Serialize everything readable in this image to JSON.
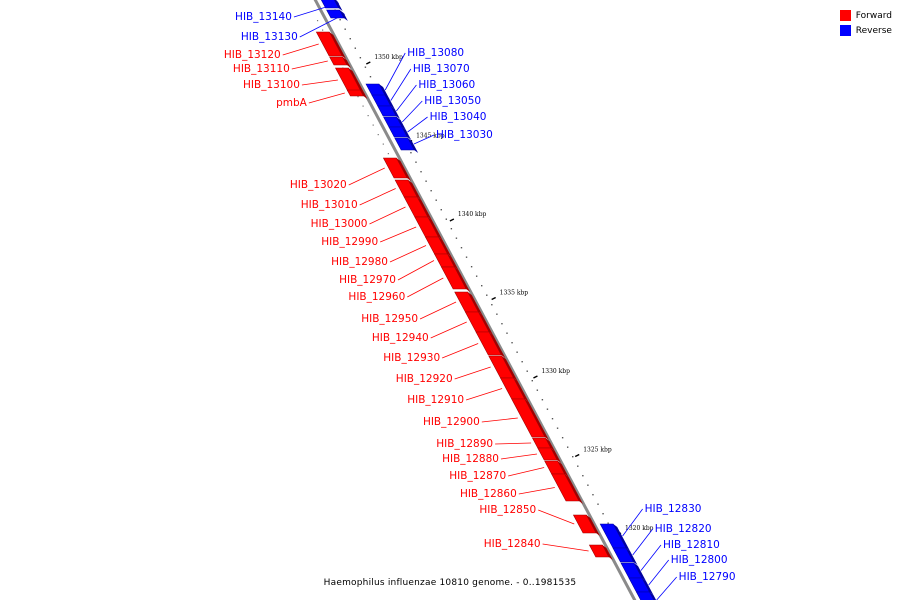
{
  "caption": "Haemophilus influenzae 10810 genome. - 0..1981535",
  "legend": [
    {
      "label": "Forward",
      "color": "#ff0000"
    },
    {
      "label": "Reverse",
      "color": "#0000ff"
    }
  ],
  "colors": {
    "forward": "#ff0000",
    "reverse": "#0000ff",
    "axis": "#888888"
  },
  "ticks": [
    {
      "label": "1350 kbp",
      "kbp": 1350
    },
    {
      "label": "1345 kbp",
      "kbp": 1345
    },
    {
      "label": "1340 kbp",
      "kbp": 1340
    },
    {
      "label": "1335 kbp",
      "kbp": 1335
    },
    {
      "label": "1330 kbp",
      "kbp": 1330
    },
    {
      "label": "1325 kbp",
      "kbp": 1325
    },
    {
      "label": "1320 kbp",
      "kbp": 1320
    }
  ],
  "genes": [
    {
      "name": "HIB_13140",
      "strand": "reverse"
    },
    {
      "name": "HIB_13130",
      "strand": "reverse"
    },
    {
      "name": "HIB_13120",
      "strand": "forward"
    },
    {
      "name": "HIB_13110",
      "strand": "forward"
    },
    {
      "name": "HIB_13100",
      "strand": "forward"
    },
    {
      "name": "pmbA",
      "strand": "forward"
    },
    {
      "name": "HIB_13080",
      "strand": "reverse"
    },
    {
      "name": "HIB_13070",
      "strand": "reverse"
    },
    {
      "name": "HIB_13060",
      "strand": "reverse"
    },
    {
      "name": "HIB_13050",
      "strand": "reverse"
    },
    {
      "name": "HIB_13040",
      "strand": "reverse"
    },
    {
      "name": "HIB_13030",
      "strand": "reverse"
    },
    {
      "name": "HIB_13020",
      "strand": "forward"
    },
    {
      "name": "HIB_13010",
      "strand": "forward"
    },
    {
      "name": "HIB_13000",
      "strand": "forward"
    },
    {
      "name": "HIB_12990",
      "strand": "forward"
    },
    {
      "name": "HIB_12980",
      "strand": "forward"
    },
    {
      "name": "HIB_12970",
      "strand": "forward"
    },
    {
      "name": "HIB_12960",
      "strand": "forward"
    },
    {
      "name": "HIB_12950",
      "strand": "forward"
    },
    {
      "name": "HIB_12940",
      "strand": "forward"
    },
    {
      "name": "HIB_12930",
      "strand": "forward"
    },
    {
      "name": "HIB_12920",
      "strand": "forward"
    },
    {
      "name": "HIB_12910",
      "strand": "forward"
    },
    {
      "name": "HIB_12900",
      "strand": "forward"
    },
    {
      "name": "HIB_12890",
      "strand": "forward"
    },
    {
      "name": "HIB_12880",
      "strand": "forward"
    },
    {
      "name": "HIB_12870",
      "strand": "forward"
    },
    {
      "name": "HIB_12860",
      "strand": "forward"
    },
    {
      "name": "HIB_12850",
      "strand": "forward"
    },
    {
      "name": "HIB_12840",
      "strand": "forward"
    },
    {
      "name": "HIB_12830",
      "strand": "reverse"
    },
    {
      "name": "HIB_12820",
      "strand": "reverse"
    },
    {
      "name": "HIB_12810",
      "strand": "reverse"
    },
    {
      "name": "HIB_12800",
      "strand": "reverse"
    },
    {
      "name": "HIB_12790",
      "strand": "reverse"
    }
  ]
}
